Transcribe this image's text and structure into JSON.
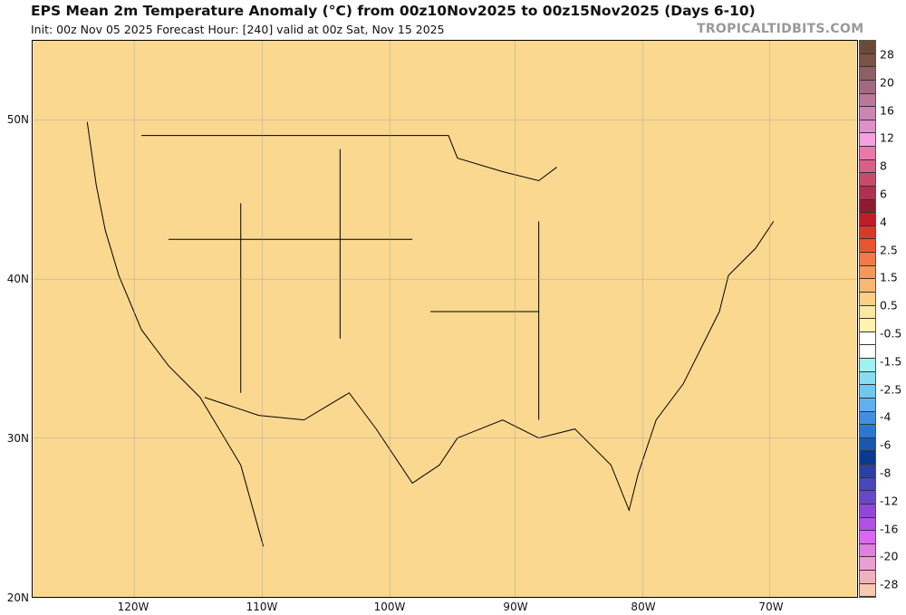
{
  "header": {
    "title": "EPS Mean 2m Temperature Anomaly (°C) from 00z10Nov2025 to 00z15Nov2025 (Days 6-10)",
    "subtitle": "Init: 00z Nov 05 2025   Forecast Hour: [240]   valid at 00z Sat, Nov 15 2025",
    "brand": "TROPICALTIDBITS.COM"
  },
  "map": {
    "lat_labels": [
      "50N",
      "40N",
      "30N",
      "20N"
    ],
    "lon_labels": [
      "120W",
      "110W",
      "100W",
      "90W",
      "80W",
      "70W"
    ]
  },
  "colorbar": {
    "labels": [
      "28",
      "20",
      "16",
      "12",
      "8",
      "6",
      "4",
      "2.5",
      "1.5",
      "0.5",
      "-0.5",
      "-1.5",
      "-2.5",
      "-4",
      "-6",
      "-8",
      "-12",
      "-16",
      "-20",
      "-28"
    ],
    "colors": [
      "#6b4a3a",
      "#7a5246",
      "#8f5f68",
      "#a06a80",
      "#b87898",
      "#c888b0",
      "#e090c8",
      "#f5a0e0",
      "#e87aa8",
      "#d86088",
      "#c84a68",
      "#b03050",
      "#901a30",
      "#c01c28",
      "#d83a2a",
      "#e85530",
      "#f07a48",
      "#f59858",
      "#f8b870",
      "#fbd085",
      "#fde8a0",
      "#fff3b0",
      "#ffffff",
      "#ffffff",
      "#a0f0f0",
      "#88dcf0",
      "#70c8f0",
      "#60b0f0",
      "#4090e0",
      "#2c78d0",
      "#1858b0",
      "#0a3a90",
      "#2c40a0",
      "#4848b8",
      "#6848c8",
      "#9048d8",
      "#b050e8",
      "#d868f0",
      "#e080e0",
      "#e8a0d0",
      "#f0b0c0",
      "#f8c8b0"
    ]
  }
}
